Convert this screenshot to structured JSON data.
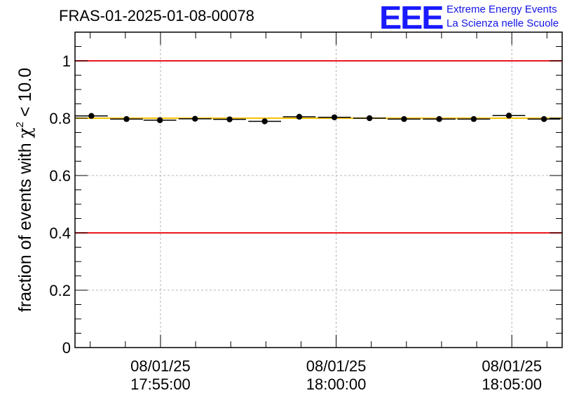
{
  "header": {
    "title": "FRAS-01-2025-01-08-00078"
  },
  "logo": {
    "mark": "EEE",
    "line1": "Extreme Energy Events",
    "line2": "La Scienza nelle Scuole",
    "color": "#1a1aff"
  },
  "chart_data": {
    "type": "scatter",
    "title": "FRAS-01-2025-01-08-00078",
    "ylabel_prefix": "fraction of events with ",
    "ylabel_symbol": "χ",
    "ylabel_exp": "2",
    "ylabel_suffix": " < 10.0",
    "ylim": [
      0,
      1.1
    ],
    "yticks": [
      {
        "value": 0,
        "label": "0"
      },
      {
        "value": 0.2,
        "label": "0.2"
      },
      {
        "value": 0.4,
        "label": "0.4"
      },
      {
        "value": 0.6,
        "label": "0.6"
      },
      {
        "value": 0.8,
        "label": "0.8"
      },
      {
        "value": 1,
        "label": "1"
      }
    ],
    "xlim": [
      "2025-01-08 17:52:34",
      "2025-01-08 18:06:26"
    ],
    "xticks": [
      {
        "time": "2025-01-08 17:55:00",
        "date_label": "08/01/25",
        "time_label": "17:55:00"
      },
      {
        "time": "2025-01-08 18:00:00",
        "date_label": "08/01/25",
        "time_label": "18:00:00"
      },
      {
        "time": "2025-01-08 18:05:00",
        "date_label": "08/01/25",
        "time_label": "18:05:00"
      }
    ],
    "grid": true,
    "reference_lines": [
      {
        "value": 1.0,
        "color": "#e8181e"
      },
      {
        "value": 0.4,
        "color": "#e8181e"
      },
      {
        "value": 0.8,
        "color": "#f5c200"
      }
    ],
    "points": [
      {
        "time": "2025-01-08 17:53:02",
        "start": "2025-01-08 17:52:34",
        "end": "2025-01-08 17:53:30",
        "y": 0.808
      },
      {
        "time": "2025-01-08 17:54:02",
        "start": "2025-01-08 17:53:34",
        "end": "2025-01-08 17:54:30",
        "y": 0.797
      },
      {
        "time": "2025-01-08 17:54:59",
        "start": "2025-01-08 17:54:31",
        "end": "2025-01-08 17:55:27",
        "y": 0.793
      },
      {
        "time": "2025-01-08 17:55:59",
        "start": "2025-01-08 17:55:31",
        "end": "2025-01-08 17:56:27",
        "y": 0.798
      },
      {
        "time": "2025-01-08 17:56:58",
        "start": "2025-01-08 17:56:30",
        "end": "2025-01-08 17:57:26",
        "y": 0.796
      },
      {
        "time": "2025-01-08 17:57:58",
        "start": "2025-01-08 17:57:30",
        "end": "2025-01-08 17:58:26",
        "y": 0.789
      },
      {
        "time": "2025-01-08 17:58:57",
        "start": "2025-01-08 17:58:29",
        "end": "2025-01-08 17:59:25",
        "y": 0.805
      },
      {
        "time": "2025-01-08 17:59:57",
        "start": "2025-01-08 17:59:29",
        "end": "2025-01-08 18:00:25",
        "y": 0.803
      },
      {
        "time": "2025-01-08 18:00:57",
        "start": "2025-01-08 18:00:29",
        "end": "2025-01-08 18:01:25",
        "y": 0.8
      },
      {
        "time": "2025-01-08 18:01:56",
        "start": "2025-01-08 18:01:28",
        "end": "2025-01-08 18:02:24",
        "y": 0.797
      },
      {
        "time": "2025-01-08 18:02:56",
        "start": "2025-01-08 18:02:28",
        "end": "2025-01-08 18:03:24",
        "y": 0.797
      },
      {
        "time": "2025-01-08 18:03:55",
        "start": "2025-01-08 18:03:27",
        "end": "2025-01-08 18:04:23",
        "y": 0.797
      },
      {
        "time": "2025-01-08 18:04:55",
        "start": "2025-01-08 18:04:27",
        "end": "2025-01-08 18:05:23",
        "y": 0.809
      },
      {
        "time": "2025-01-08 18:05:55",
        "start": "2025-01-08 18:05:27",
        "end": "2025-01-08 18:06:23",
        "y": 0.797
      }
    ]
  }
}
